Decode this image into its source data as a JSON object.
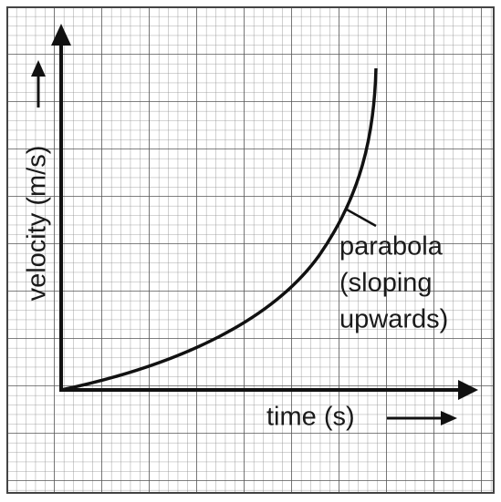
{
  "labels": {
    "y_axis": "velocity (m/s)",
    "x_axis": "time (s)",
    "annotation": [
      "parabola",
      "(sloping",
      "upwards)"
    ]
  }
}
